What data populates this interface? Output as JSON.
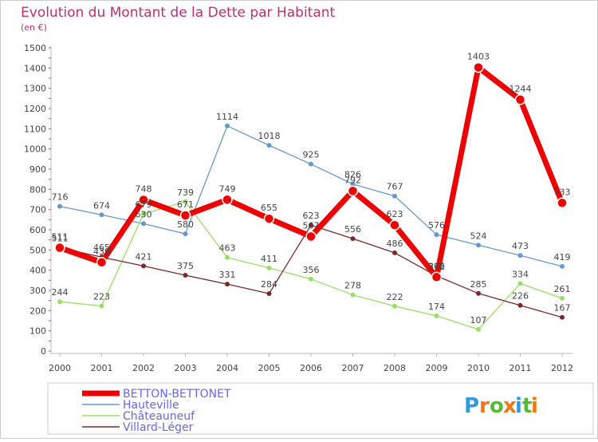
{
  "chart_data": {
    "type": "line",
    "title": "Evolution du Montant de la Dette par Habitant",
    "subtitle": "(en €)",
    "xlabel": "",
    "ylabel": "",
    "x": [
      "2000",
      "2001",
      "2002",
      "2003",
      "2004",
      "2005",
      "2006",
      "2007",
      "2008",
      "2009",
      "2010",
      "2011",
      "2012"
    ],
    "ylim": [
      0,
      1500
    ],
    "yticks": [
      0,
      100,
      200,
      300,
      400,
      500,
      600,
      700,
      800,
      900,
      1000,
      1100,
      1200,
      1300,
      1400,
      1500
    ],
    "grid": false,
    "legend_position": "bottom-left",
    "series": [
      {
        "name": "BETTON-BETTONET",
        "color": "#ee0000",
        "values": [
          511,
          439,
          748,
          671,
          749,
          655,
          567,
          792,
          623,
          366,
          1403,
          1244,
          733
        ],
        "labels": [
          "511",
          "439",
          "748",
          "671",
          "749",
          "655",
          "567",
          "792",
          "623",
          "366",
          "1403",
          "1244",
          "733"
        ]
      },
      {
        "name": "Hauteville",
        "color": "#6699cc",
        "values": [
          716,
          674,
          630,
          580,
          1114,
          1018,
          925,
          826,
          767,
          576,
          524,
          473,
          419
        ],
        "labels": [
          "716",
          "674",
          "630",
          "580",
          "1114",
          "1018",
          "925",
          "826",
          "767",
          "576",
          "524",
          "473",
          "419"
        ]
      },
      {
        "name": "Châteauneuf",
        "color": "#99dd66",
        "values": [
          244,
          223,
          679,
          739,
          463,
          411,
          356,
          278,
          222,
          174,
          107,
          334,
          261
        ],
        "labels": [
          "244",
          "223",
          "679",
          "739",
          "463",
          "411",
          "356",
          "278",
          "222",
          "174",
          "107",
          "334",
          "261"
        ]
      },
      {
        "name": "Villard-Léger",
        "color": "#7a2a2a",
        "values": [
          511,
          465,
          421,
          375,
          331,
          284,
          623,
          556,
          486,
          372,
          285,
          226,
          167
        ],
        "labels": [
          "511",
          "465",
          "421",
          "375",
          "331",
          "284",
          "623",
          "556",
          "486",
          "372",
          "285",
          "226",
          "167"
        ]
      }
    ]
  },
  "brand": {
    "text": "Proxiti",
    "letters": [
      "P",
      "r",
      "o",
      "x",
      "i",
      "t",
      "i"
    ],
    "colors": [
      "#3399dd",
      "#ee7711",
      "#55bb33",
      "#ee7711",
      "#3399dd",
      "#55bb33",
      "#ee7711"
    ]
  }
}
